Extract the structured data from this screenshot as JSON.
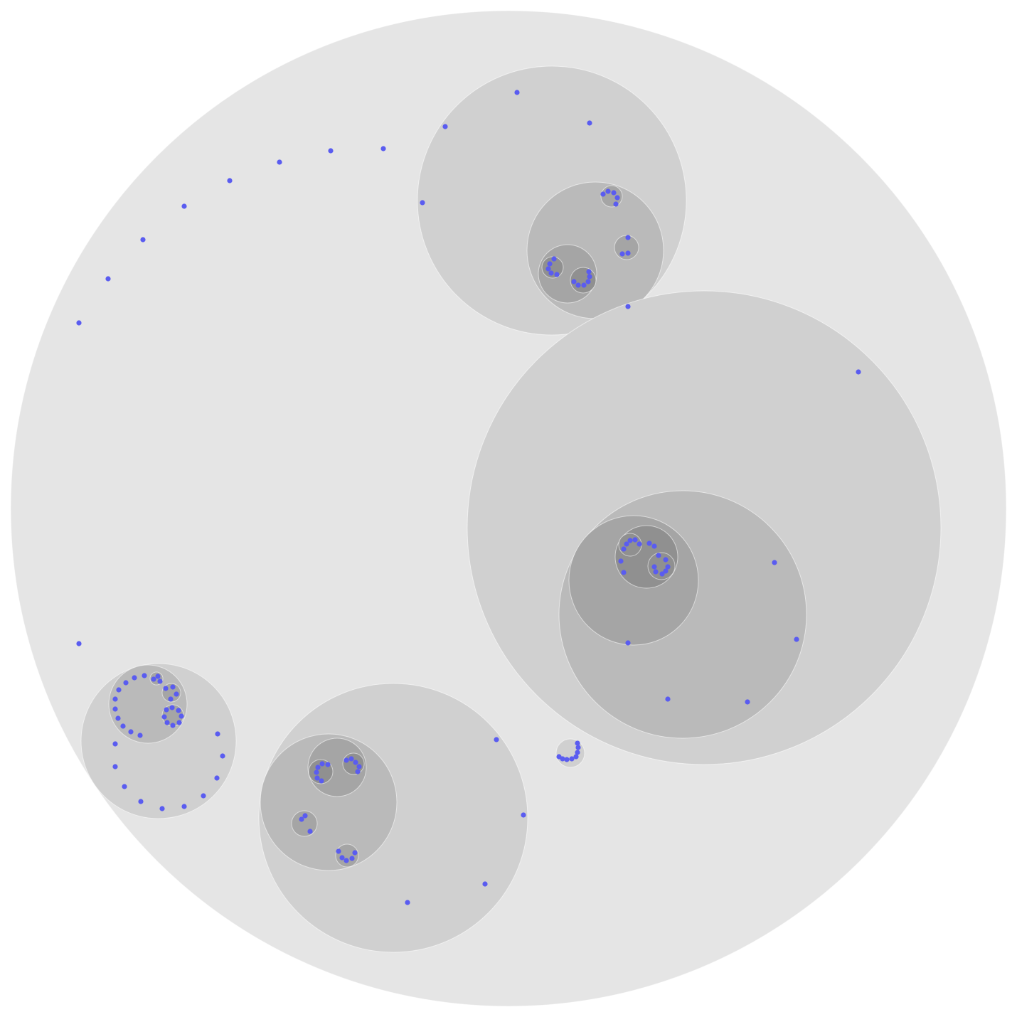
{
  "diagram": {
    "type": "circle-packing",
    "colors": {
      "background": "#ffffff",
      "leaf": "#5a5cf0",
      "depth_fills": [
        "#e5e5e5",
        "#d0d0d0",
        "#bababa",
        "#a5a5a5",
        "#909090"
      ]
    }
  }
}
